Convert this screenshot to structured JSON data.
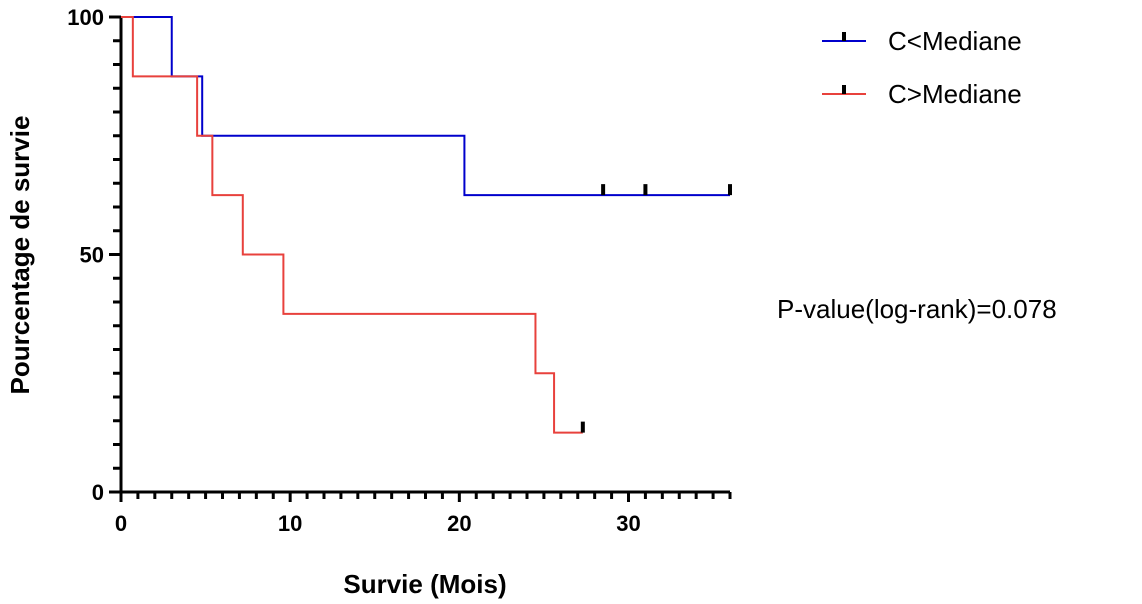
{
  "chart_data": {
    "type": "line",
    "subtype": "kaplan-meier",
    "title": "",
    "xlabel": "Survie (Mois)",
    "ylabel": "Pourcentage de survie",
    "xlim": [
      0,
      36
    ],
    "ylim": [
      0,
      100
    ],
    "x_ticks": [
      0,
      10,
      20,
      30
    ],
    "y_ticks": [
      0,
      50,
      100
    ],
    "x_minor_step": 1,
    "y_minor_step": 5,
    "grid": false,
    "legend_position": "top-right",
    "series": [
      {
        "name": "C<Mediane",
        "color": "#0000cc",
        "steps": [
          [
            0,
            100
          ],
          [
            3,
            87.5
          ],
          [
            4.8,
            75
          ],
          [
            20.3,
            62.5
          ]
        ],
        "end_x": 36,
        "censored": [
          [
            28.5,
            62.5
          ],
          [
            31,
            62.5
          ],
          [
            36,
            62.5
          ]
        ]
      },
      {
        "name": "C>Mediane",
        "color": "#e8413c",
        "steps": [
          [
            0,
            100
          ],
          [
            0.7,
            87.5
          ],
          [
            4.5,
            75
          ],
          [
            5.4,
            62.5
          ],
          [
            7.2,
            50
          ],
          [
            9.6,
            37.5
          ],
          [
            24.5,
            25
          ],
          [
            25.6,
            12.5
          ]
        ],
        "end_x": 27.3,
        "censored": [
          [
            27.3,
            12.5
          ]
        ]
      }
    ],
    "annotations": [
      "P-value(log-rank)=0.078"
    ]
  }
}
